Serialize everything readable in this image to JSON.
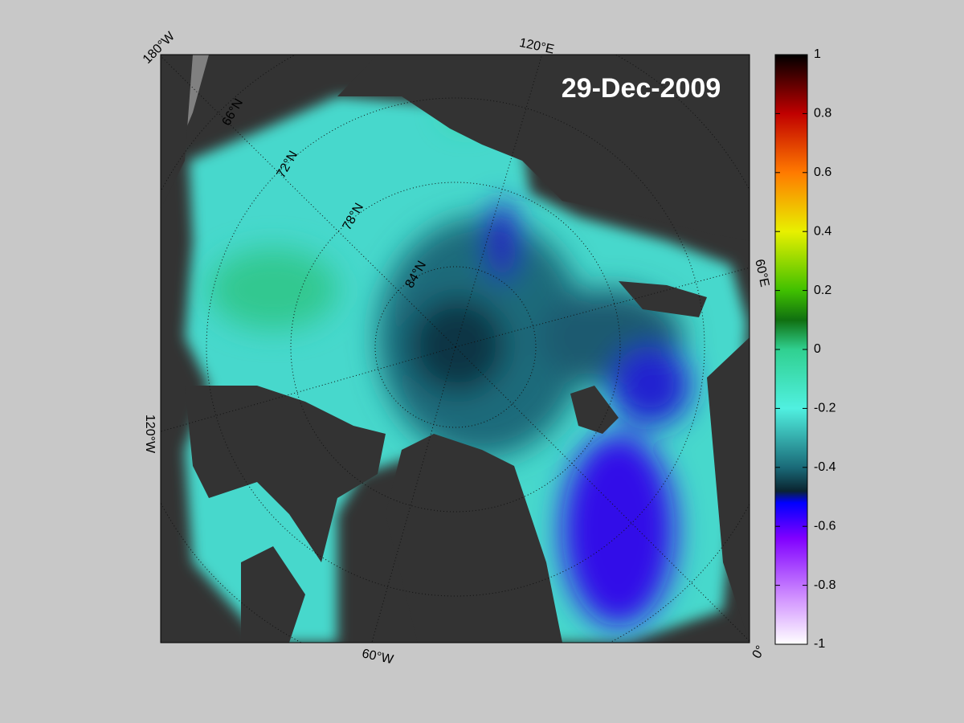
{
  "map": {
    "date_label": "29-Dec-2009",
    "lon_labels": [
      "180°W",
      "120°E",
      "60°E",
      "0°",
      "60°W",
      "120°W"
    ],
    "lat_labels": [
      "66°N",
      "72°N",
      "78°N",
      "84°N"
    ]
  },
  "colorbar": {
    "ylim": [
      -1,
      1
    ],
    "yticks": [
      -1,
      -0.8,
      -0.6,
      -0.4,
      -0.2,
      0,
      0.2,
      0.4,
      0.6,
      0.8,
      1
    ]
  }
}
